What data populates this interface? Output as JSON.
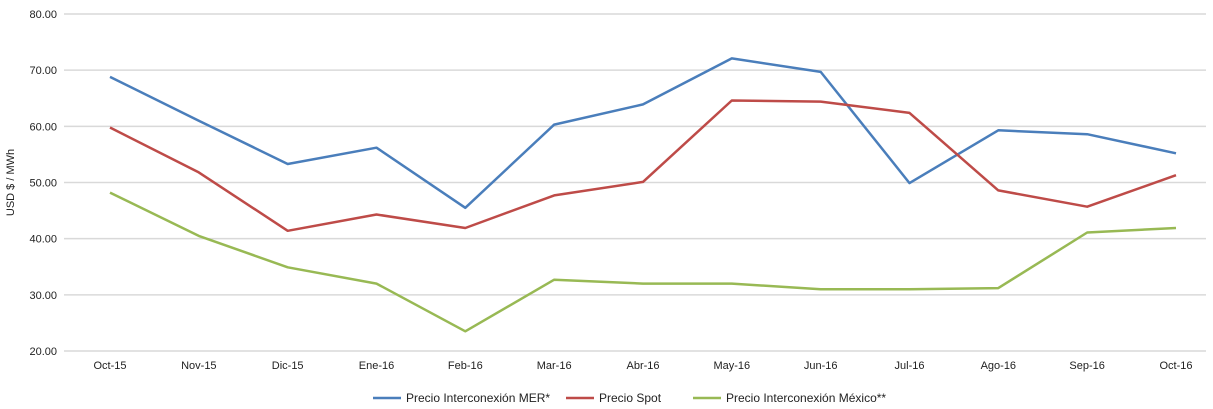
{
  "chart_data": {
    "type": "line",
    "title": "",
    "xlabel": "",
    "ylabel": "USD $ / MWh",
    "ylim": [
      20,
      80
    ],
    "yticks": [
      "20.00",
      "30.00",
      "40.00",
      "50.00",
      "60.00",
      "70.00",
      "80.00"
    ],
    "grid": "horizontal",
    "legend_position": "bottom-center",
    "categories": [
      "Oct-15",
      "Nov-15",
      "Dic-15",
      "Ene-16",
      "Feb-16",
      "Mar-16",
      "Abr-16",
      "May-16",
      "Jun-16",
      "Jul-16",
      "Ago-16",
      "Sep-16",
      "Oct-16"
    ],
    "series": [
      {
        "name": "Precio Interconexión MER*",
        "color": "#4a7ebb",
        "values": [
          68.8,
          61.0,
          53.3,
          56.2,
          45.5,
          60.3,
          63.9,
          72.1,
          69.7,
          49.9,
          59.3,
          58.6,
          55.2
        ]
      },
      {
        "name": "Precio Spot",
        "color": "#be4b48",
        "values": [
          59.8,
          51.8,
          41.4,
          44.3,
          41.9,
          47.7,
          50.1,
          64.6,
          64.4,
          62.4,
          48.6,
          45.7,
          51.3
        ]
      },
      {
        "name": "Precio Interconexión México**",
        "color": "#98b954",
        "values": [
          48.2,
          40.5,
          34.9,
          32.0,
          23.5,
          32.7,
          32.0,
          32.0,
          31.0,
          31.0,
          31.2,
          41.1,
          41.9
        ]
      }
    ]
  }
}
